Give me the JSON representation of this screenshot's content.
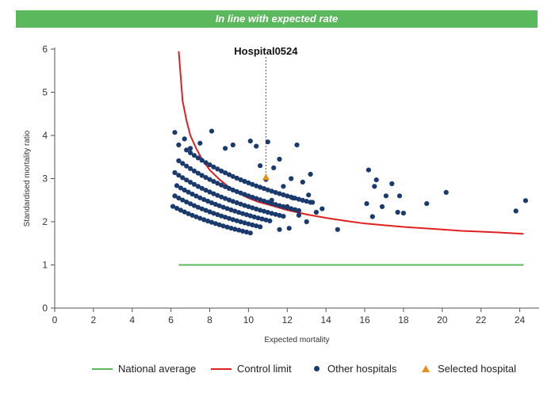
{
  "banner": {
    "text": "In line with expected rate",
    "color": "#5cb85c"
  },
  "chart_data": {
    "type": "scatter",
    "title": "",
    "xlabel": "Expected mortality",
    "ylabel": "Standardised mortality ratio",
    "xlim": [
      0,
      25
    ],
    "ylim": [
      0,
      6
    ],
    "xticks": [
      0,
      2,
      4,
      6,
      8,
      10,
      12,
      14,
      16,
      18,
      20,
      22,
      24
    ],
    "yticks": [
      0,
      1,
      2,
      3,
      4,
      5,
      6
    ],
    "grid": false,
    "legend_position": "bottom",
    "national_average": {
      "name": "National average",
      "value": 1,
      "x_range": [
        6.4,
        24.2
      ],
      "color": "#5cb85c"
    },
    "control_limit": {
      "name": "Control limit",
      "color": "#e02020",
      "points": [
        [
          6.4,
          5.95
        ],
        [
          6.6,
          4.8
        ],
        [
          6.8,
          4.35
        ],
        [
          7.0,
          4.0
        ],
        [
          7.3,
          3.7
        ],
        [
          7.6,
          3.45
        ],
        [
          8.0,
          3.2
        ],
        [
          8.5,
          2.98
        ],
        [
          9.0,
          2.8
        ],
        [
          9.5,
          2.66
        ],
        [
          10.0,
          2.55
        ],
        [
          10.5,
          2.46
        ],
        [
          11.0,
          2.4
        ],
        [
          12.0,
          2.27
        ],
        [
          13.0,
          2.17
        ],
        [
          14.0,
          2.09
        ],
        [
          15.0,
          2.02
        ],
        [
          16.0,
          1.96
        ],
        [
          17.0,
          1.92
        ],
        [
          18.0,
          1.88
        ],
        [
          19.0,
          1.85
        ],
        [
          20.0,
          1.82
        ],
        [
          21.0,
          1.79
        ],
        [
          22.0,
          1.77
        ],
        [
          23.0,
          1.75
        ],
        [
          24.2,
          1.72
        ]
      ]
    },
    "series": [
      {
        "name": "Other hospitals",
        "color": "#1a3a6e",
        "bands": [
          {
            "y_at_6": 2.38,
            "y_at_10": 1.75,
            "x_range": [
              6.1,
              10.2
            ]
          },
          {
            "y_at_6": 2.65,
            "y_at_10": 1.95,
            "x_range": [
              6.2,
              10.6
            ]
          },
          {
            "y_at_6": 2.92,
            "y_at_10": 2.15,
            "x_range": [
              6.3,
              11.2
            ]
          },
          {
            "y_at_6": 3.2,
            "y_at_10": 2.35,
            "x_range": [
              6.2,
              11.8
            ]
          },
          {
            "y_at_6": 3.55,
            "y_at_10": 2.6,
            "x_range": [
              6.4,
              12.6
            ]
          },
          {
            "y_at_6": 3.95,
            "y_at_10": 2.9,
            "x_range": [
              6.8,
              13.2
            ]
          }
        ],
        "points": [
          {
            "x": 6.2,
            "y": 4.07
          },
          {
            "x": 6.4,
            "y": 3.78
          },
          {
            "x": 6.7,
            "y": 3.92
          },
          {
            "x": 7.0,
            "y": 3.7
          },
          {
            "x": 7.5,
            "y": 3.82
          },
          {
            "x": 8.1,
            "y": 4.1
          },
          {
            "x": 8.8,
            "y": 3.7
          },
          {
            "x": 9.2,
            "y": 3.78
          },
          {
            "x": 10.1,
            "y": 3.87
          },
          {
            "x": 10.4,
            "y": 3.75
          },
          {
            "x": 11.0,
            "y": 3.85
          },
          {
            "x": 12.5,
            "y": 3.78
          },
          {
            "x": 10.6,
            "y": 3.3
          },
          {
            "x": 11.3,
            "y": 3.25
          },
          {
            "x": 11.6,
            "y": 3.45
          },
          {
            "x": 12.2,
            "y": 3.0
          },
          {
            "x": 12.8,
            "y": 2.92
          },
          {
            "x": 13.2,
            "y": 3.1
          },
          {
            "x": 13.1,
            "y": 2.62
          },
          {
            "x": 13.3,
            "y": 2.45
          },
          {
            "x": 13.0,
            "y": 2.0
          },
          {
            "x": 13.5,
            "y": 2.22
          },
          {
            "x": 13.8,
            "y": 2.3
          },
          {
            "x": 14.6,
            "y": 1.82
          },
          {
            "x": 11.6,
            "y": 1.82
          },
          {
            "x": 12.1,
            "y": 1.85
          },
          {
            "x": 12.3,
            "y": 2.55
          },
          {
            "x": 12.6,
            "y": 2.15
          },
          {
            "x": 12.0,
            "y": 2.35
          },
          {
            "x": 11.8,
            "y": 2.82
          },
          {
            "x": 11.2,
            "y": 2.5
          },
          {
            "x": 10.9,
            "y": 2.98
          },
          {
            "x": 16.2,
            "y": 3.2
          },
          {
            "x": 16.6,
            "y": 2.97
          },
          {
            "x": 16.5,
            "y": 2.82
          },
          {
            "x": 16.1,
            "y": 2.42
          },
          {
            "x": 16.4,
            "y": 2.12
          },
          {
            "x": 16.9,
            "y": 2.35
          },
          {
            "x": 17.1,
            "y": 2.6
          },
          {
            "x": 17.4,
            "y": 2.88
          },
          {
            "x": 17.8,
            "y": 2.6
          },
          {
            "x": 17.7,
            "y": 2.22
          },
          {
            "x": 18.0,
            "y": 2.2
          },
          {
            "x": 19.2,
            "y": 2.42
          },
          {
            "x": 20.2,
            "y": 2.68
          },
          {
            "x": 23.8,
            "y": 2.25
          },
          {
            "x": 24.3,
            "y": 2.49
          }
        ]
      },
      {
        "name": "Selected hospital",
        "color": "#e8901a",
        "marker": "triangle",
        "points": [
          {
            "x": 10.9,
            "y": 3.03
          }
        ]
      }
    ],
    "annotation": {
      "text": "Hospital0524",
      "x": 10.9
    }
  },
  "legend": [
    {
      "label": "National average",
      "kind": "line",
      "color": "#5cb85c"
    },
    {
      "label": "Control limit",
      "kind": "line",
      "color": "#e02020"
    },
    {
      "label": "Other hospitals",
      "kind": "dot",
      "color": "#1a3a6e"
    },
    {
      "label": "Selected hospital",
      "kind": "triangle",
      "color": "#e8901a"
    }
  ]
}
